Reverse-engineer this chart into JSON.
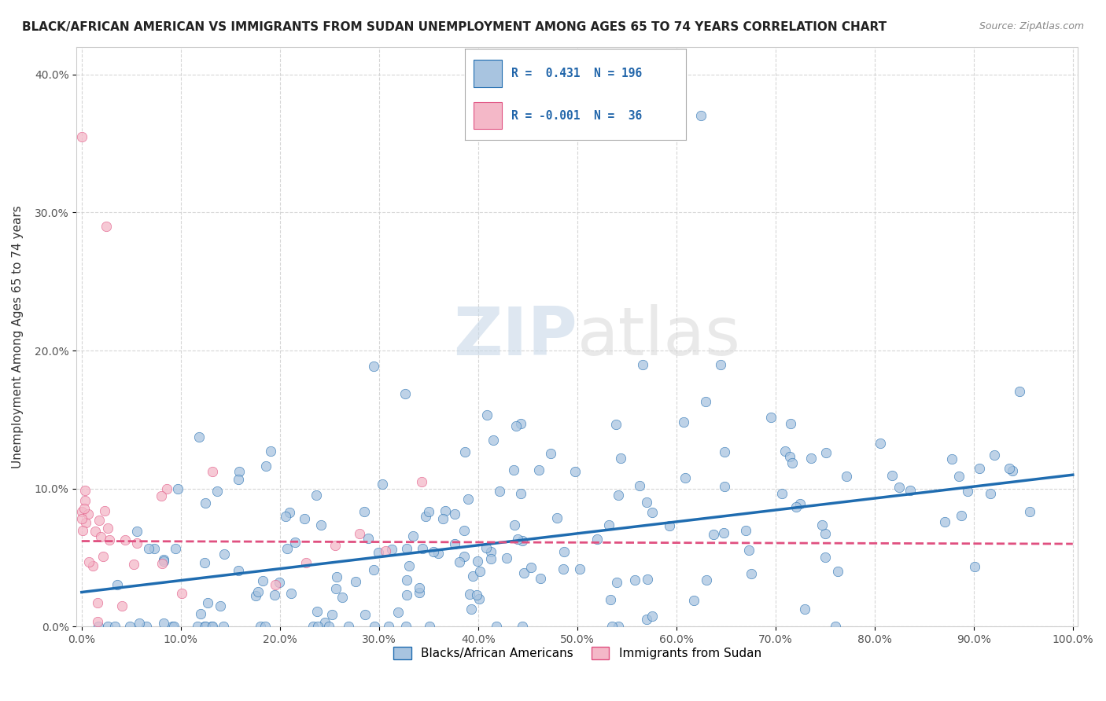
{
  "title": "BLACK/AFRICAN AMERICAN VS IMMIGRANTS FROM SUDAN UNEMPLOYMENT AMONG AGES 65 TO 74 YEARS CORRELATION CHART",
  "source": "Source: ZipAtlas.com",
  "ylabel": "Unemployment Among Ages 65 to 74 years",
  "xlim": [
    0,
    1.0
  ],
  "ylim": [
    0,
    0.42
  ],
  "xticks": [
    0.0,
    0.1,
    0.2,
    0.3,
    0.4,
    0.5,
    0.6,
    0.7,
    0.8,
    0.9,
    1.0
  ],
  "xtick_labels": [
    "0.0%",
    "10.0%",
    "20.0%",
    "30.0%",
    "40.0%",
    "50.0%",
    "60.0%",
    "70.0%",
    "80.0%",
    "90.0%",
    "100.0%"
  ],
  "yticks": [
    0.0,
    0.1,
    0.2,
    0.3,
    0.4
  ],
  "ytick_labels": [
    "0.0%",
    "10.0%",
    "20.0%",
    "30.0%",
    "40.0%"
  ],
  "blue_R": 0.431,
  "blue_N": 196,
  "pink_R": -0.001,
  "pink_N": 36,
  "blue_color": "#a8c4e0",
  "blue_line_color": "#1f6cb0",
  "pink_color": "#f4b8c8",
  "pink_line_color": "#e05080",
  "legend_label_blue": "Blacks/African Americans",
  "legend_label_pink": "Immigrants from Sudan",
  "watermark_zip": "ZIP",
  "watermark_atlas": "atlas",
  "background_color": "#ffffff",
  "grid_color": "#cccccc",
  "blue_slope": 0.085,
  "blue_intercept": 0.025,
  "pink_slope": -0.002,
  "pink_intercept": 0.062
}
